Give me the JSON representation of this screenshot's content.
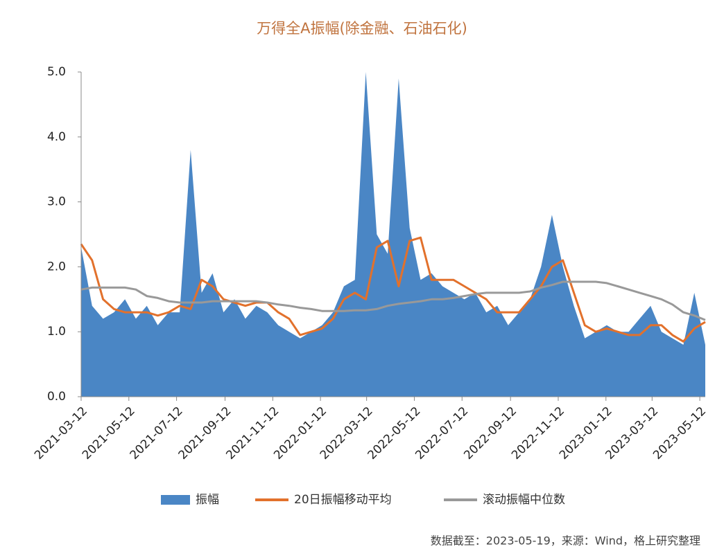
{
  "chart_data": {
    "type": "line",
    "title": "万得全A振幅(除金融、石油石化)",
    "x": [
      "2021-03-12",
      "2021-03-26",
      "2021-04-09",
      "2021-04-23",
      "2021-05-07",
      "2021-05-21",
      "2021-06-04",
      "2021-06-18",
      "2021-07-02",
      "2021-07-16",
      "2021-07-30",
      "2021-08-13",
      "2021-08-27",
      "2021-09-10",
      "2021-09-24",
      "2021-10-08",
      "2021-10-22",
      "2021-11-05",
      "2021-11-19",
      "2021-12-03",
      "2021-12-17",
      "2021-12-31",
      "2022-01-14",
      "2022-01-28",
      "2022-02-11",
      "2022-02-25",
      "2022-03-11",
      "2022-03-25",
      "2022-04-08",
      "2022-04-22",
      "2022-05-06",
      "2022-05-20",
      "2022-06-03",
      "2022-06-17",
      "2022-07-01",
      "2022-07-15",
      "2022-07-29",
      "2022-08-12",
      "2022-08-26",
      "2022-09-09",
      "2022-09-23",
      "2022-10-07",
      "2022-10-21",
      "2022-11-04",
      "2022-11-18",
      "2022-12-02",
      "2022-12-16",
      "2022-12-30",
      "2023-01-13",
      "2023-01-27",
      "2023-02-10",
      "2023-02-24",
      "2023-03-10",
      "2023-03-24",
      "2023-04-07",
      "2023-04-21",
      "2023-05-05",
      "2023-05-19"
    ],
    "series": [
      {
        "name": "振幅",
        "style": "area",
        "color": "#4a86c5",
        "values": [
          2.3,
          1.4,
          1.2,
          1.3,
          1.5,
          1.2,
          1.4,
          1.1,
          1.3,
          1.3,
          3.8,
          1.6,
          1.9,
          1.3,
          1.5,
          1.2,
          1.4,
          1.3,
          1.1,
          1.0,
          0.9,
          1.0,
          1.1,
          1.3,
          1.7,
          1.8,
          5.0,
          2.5,
          2.2,
          4.9,
          2.6,
          1.8,
          1.9,
          1.7,
          1.6,
          1.5,
          1.6,
          1.3,
          1.4,
          1.1,
          1.3,
          1.5,
          2.0,
          2.8,
          2.0,
          1.4,
          0.9,
          1.0,
          1.1,
          1.0,
          1.0,
          1.2,
          1.4,
          1.0,
          0.9,
          0.8,
          1.6,
          0.8
        ]
      },
      {
        "name": "20日振幅移动平均",
        "style": "line",
        "color": "#e2712c",
        "values": [
          2.35,
          2.1,
          1.5,
          1.35,
          1.3,
          1.3,
          1.3,
          1.25,
          1.3,
          1.4,
          1.35,
          1.8,
          1.7,
          1.5,
          1.45,
          1.4,
          1.45,
          1.45,
          1.3,
          1.2,
          0.95,
          1.0,
          1.05,
          1.2,
          1.5,
          1.6,
          1.5,
          2.3,
          2.4,
          1.7,
          2.4,
          2.45,
          1.8,
          1.8,
          1.8,
          1.7,
          1.6,
          1.5,
          1.3,
          1.3,
          1.3,
          1.5,
          1.7,
          2.0,
          2.1,
          1.6,
          1.1,
          1.0,
          1.05,
          1.0,
          0.95,
          0.95,
          1.1,
          1.1,
          0.95,
          0.85,
          1.05,
          1.15
        ]
      },
      {
        "name": "滚动振幅中位数",
        "style": "line",
        "color": "#999999",
        "values": [
          1.65,
          1.68,
          1.68,
          1.68,
          1.68,
          1.65,
          1.55,
          1.52,
          1.47,
          1.45,
          1.45,
          1.45,
          1.47,
          1.47,
          1.47,
          1.47,
          1.47,
          1.45,
          1.42,
          1.4,
          1.37,
          1.35,
          1.32,
          1.32,
          1.32,
          1.33,
          1.33,
          1.35,
          1.4,
          1.43,
          1.45,
          1.47,
          1.5,
          1.5,
          1.52,
          1.55,
          1.58,
          1.6,
          1.6,
          1.6,
          1.6,
          1.62,
          1.68,
          1.72,
          1.77,
          1.77,
          1.77,
          1.77,
          1.75,
          1.7,
          1.65,
          1.6,
          1.55,
          1.5,
          1.42,
          1.3,
          1.25,
          1.18
        ]
      }
    ],
    "xlim": [
      "2021-03-12",
      "2023-05-19"
    ],
    "xticks": [
      "2021-03-12",
      "2021-05-12",
      "2021-07-12",
      "2021-09-12",
      "2021-11-12",
      "2022-01-12",
      "2022-03-12",
      "2022-05-12",
      "2022-07-12",
      "2022-09-12",
      "2022-11-12",
      "2023-01-12",
      "2023-03-12",
      "2023-05-12"
    ],
    "ylim": [
      0,
      5
    ],
    "yticks": [
      {
        "value": 0,
        "label": "0.0"
      },
      {
        "value": 1,
        "label": "1.0"
      },
      {
        "value": 2,
        "label": "2.0"
      },
      {
        "value": 3,
        "label": "3.0"
      },
      {
        "value": 4,
        "label": "4.0"
      },
      {
        "value": 5,
        "label": "5.0"
      }
    ],
    "source": "数据截至：2023-05-19，来源：Wind，格上研究整理"
  }
}
